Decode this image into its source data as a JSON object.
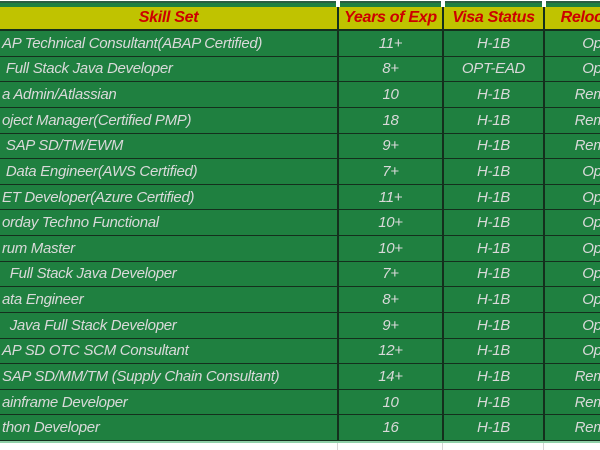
{
  "table": {
    "header": {
      "columns": [
        "Skill Set",
        "Years of Exp",
        "Visa Status",
        "Relocation"
      ]
    },
    "rows": [
      {
        "skill": "AP Technical Consultant(ABAP Certified)",
        "exp": "11+",
        "visa": "H-1B",
        "reloc": "Open"
      },
      {
        "skill": " Full Stack Java Developer",
        "exp": "8+",
        "visa": "OPT-EAD",
        "reloc": "Open"
      },
      {
        "skill": "a Admin/Atlassian",
        "exp": "10",
        "visa": "H-1B",
        "reloc": "Remote"
      },
      {
        "skill": "oject Manager(Certified PMP)",
        "exp": "18",
        "visa": "H-1B",
        "reloc": "Remote"
      },
      {
        "skill": " SAP SD/TM/EWM",
        "exp": "9+",
        "visa": "H-1B",
        "reloc": "Remote"
      },
      {
        "skill": " Data Engineer(AWS Certified)",
        "exp": "7+",
        "visa": "H-1B",
        "reloc": "Open"
      },
      {
        "skill": "ET Developer(Azure Certified)",
        "exp": "11+",
        "visa": "H-1B",
        "reloc": "Open"
      },
      {
        "skill": "orday Techno Functional",
        "exp": "10+",
        "visa": "H-1B",
        "reloc": "Open"
      },
      {
        "skill": "rum Master",
        "exp": "10+",
        "visa": "H-1B",
        "reloc": "Open"
      },
      {
        "skill": "  Full Stack Java Developer",
        "exp": "7+",
        "visa": "H-1B",
        "reloc": "Open"
      },
      {
        "skill": "ata Engineer",
        "exp": "8+",
        "visa": "H-1B",
        "reloc": "Open"
      },
      {
        "skill": "  Java Full Stack Developer",
        "exp": "9+",
        "visa": "H-1B",
        "reloc": "Open"
      },
      {
        "skill": "AP SD OTC SCM Consultant",
        "exp": "12+",
        "visa": "H-1B",
        "reloc": "Open"
      },
      {
        "skill": "SAP SD/MM/TM (Supply Chain Consultant)",
        "exp": "14+",
        "visa": "H-1B",
        "reloc": "Remote"
      },
      {
        "skill": "ainframe Developer",
        "exp": "10",
        "visa": "H-1B",
        "reloc": "Remote"
      },
      {
        "skill": "thon Developer",
        "exp": "16",
        "visa": "H-1B",
        "reloc": "Remote"
      }
    ]
  },
  "colors": {
    "cell_green": "#1f8040",
    "header_yellow": "#c0c300",
    "header_text_red": "#cc0000",
    "row_text": "#d9d9d9",
    "grid_border": "#14301d"
  }
}
